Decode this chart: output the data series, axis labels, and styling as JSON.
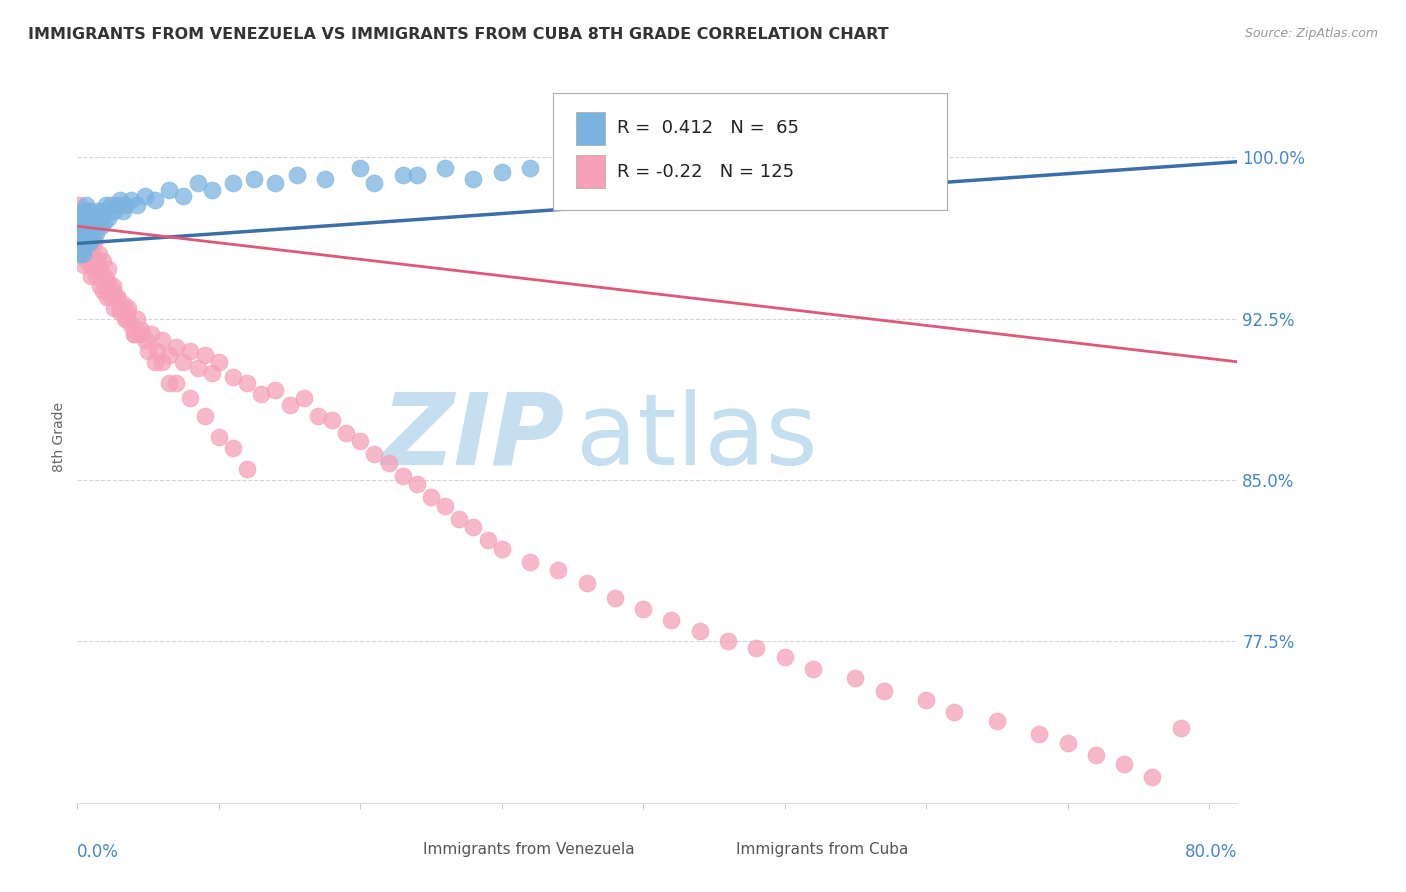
{
  "title": "IMMIGRANTS FROM VENEZUELA VS IMMIGRANTS FROM CUBA 8TH GRADE CORRELATION CHART",
  "source": "Source: ZipAtlas.com",
  "xlabel_bottom_left": "0.0%",
  "xlabel_bottom_right": "80.0%",
  "ylabel": "8th Grade",
  "xlim": [
    0.0,
    0.82
  ],
  "ylim": [
    0.7,
    1.04
  ],
  "y_tick_positions": [
    0.775,
    0.85,
    0.925,
    1.0
  ],
  "y_tick_labels": [
    "77.5%",
    "85.0%",
    "92.5%",
    "100.0%"
  ],
  "R_venezuela": 0.412,
  "N_venezuela": 65,
  "R_cuba": -0.22,
  "N_cuba": 125,
  "color_venezuela": "#7ab3e0",
  "color_cuba": "#f5a0b8",
  "trendline_venezuela": "#3a6faa",
  "trendline_cuba": "#e05878",
  "legend_label_venezuela": "Immigrants from Venezuela",
  "legend_label_cuba": "Immigrants from Cuba",
  "watermark_zip": "ZIP",
  "watermark_atlas": "atlas",
  "watermark_color_zip": "#c5dff0",
  "watermark_color_atlas": "#c5dff0",
  "title_color": "#333333",
  "axis_color": "#4488cc",
  "grid_color": "#cccccc",
  "background_color": "#ffffff",
  "venezuela_x": [
    0.001,
    0.001,
    0.002,
    0.002,
    0.002,
    0.003,
    0.003,
    0.003,
    0.004,
    0.004,
    0.004,
    0.005,
    0.005,
    0.005,
    0.006,
    0.006,
    0.006,
    0.007,
    0.007,
    0.008,
    0.008,
    0.009,
    0.009,
    0.01,
    0.01,
    0.011,
    0.012,
    0.013,
    0.014,
    0.015,
    0.016,
    0.017,
    0.018,
    0.019,
    0.02,
    0.022,
    0.024,
    0.026,
    0.028,
    0.03,
    0.032,
    0.034,
    0.038,
    0.042,
    0.048,
    0.055,
    0.065,
    0.075,
    0.085,
    0.095,
    0.11,
    0.125,
    0.14,
    0.155,
    0.175,
    0.2,
    0.23,
    0.26,
    0.3,
    0.35,
    0.21,
    0.24,
    0.28,
    0.32,
    0.38
  ],
  "venezuela_y": [
    0.958,
    0.963,
    0.955,
    0.965,
    0.97,
    0.96,
    0.968,
    0.972,
    0.955,
    0.963,
    0.97,
    0.958,
    0.965,
    0.975,
    0.96,
    0.97,
    0.978,
    0.965,
    0.975,
    0.96,
    0.972,
    0.965,
    0.975,
    0.962,
    0.97,
    0.968,
    0.972,
    0.965,
    0.975,
    0.97,
    0.972,
    0.968,
    0.975,
    0.97,
    0.978,
    0.972,
    0.978,
    0.975,
    0.978,
    0.98,
    0.975,
    0.978,
    0.98,
    0.978,
    0.982,
    0.98,
    0.985,
    0.982,
    0.988,
    0.985,
    0.988,
    0.99,
    0.988,
    0.992,
    0.99,
    0.995,
    0.992,
    0.995,
    0.993,
    0.998,
    0.988,
    0.992,
    0.99,
    0.995,
    0.988
  ],
  "cuba_x": [
    0.001,
    0.001,
    0.002,
    0.002,
    0.003,
    0.003,
    0.004,
    0.004,
    0.005,
    0.005,
    0.005,
    0.006,
    0.006,
    0.007,
    0.007,
    0.008,
    0.008,
    0.009,
    0.009,
    0.01,
    0.01,
    0.011,
    0.012,
    0.012,
    0.013,
    0.014,
    0.015,
    0.016,
    0.017,
    0.018,
    0.019,
    0.02,
    0.021,
    0.022,
    0.024,
    0.025,
    0.026,
    0.028,
    0.03,
    0.032,
    0.034,
    0.036,
    0.038,
    0.04,
    0.042,
    0.045,
    0.048,
    0.052,
    0.056,
    0.06,
    0.065,
    0.07,
    0.075,
    0.08,
    0.085,
    0.09,
    0.095,
    0.1,
    0.11,
    0.12,
    0.13,
    0.14,
    0.15,
    0.16,
    0.17,
    0.18,
    0.19,
    0.2,
    0.21,
    0.22,
    0.23,
    0.24,
    0.25,
    0.26,
    0.27,
    0.28,
    0.29,
    0.3,
    0.32,
    0.34,
    0.36,
    0.38,
    0.4,
    0.42,
    0.44,
    0.46,
    0.48,
    0.5,
    0.52,
    0.55,
    0.57,
    0.6,
    0.62,
    0.65,
    0.68,
    0.7,
    0.72,
    0.74,
    0.76,
    0.78,
    0.01,
    0.015,
    0.02,
    0.025,
    0.03,
    0.035,
    0.04,
    0.05,
    0.06,
    0.07,
    0.08,
    0.09,
    0.1,
    0.11,
    0.12,
    0.005,
    0.008,
    0.012,
    0.018,
    0.022,
    0.028,
    0.035,
    0.045,
    0.055,
    0.065
  ],
  "cuba_y": [
    0.97,
    0.978,
    0.965,
    0.975,
    0.96,
    0.972,
    0.955,
    0.968,
    0.95,
    0.962,
    0.972,
    0.958,
    0.965,
    0.952,
    0.96,
    0.955,
    0.968,
    0.95,
    0.958,
    0.962,
    0.945,
    0.955,
    0.95,
    0.96,
    0.945,
    0.952,
    0.948,
    0.94,
    0.945,
    0.938,
    0.945,
    0.94,
    0.935,
    0.942,
    0.935,
    0.94,
    0.93,
    0.935,
    0.928,
    0.932,
    0.925,
    0.93,
    0.922,
    0.918,
    0.925,
    0.92,
    0.915,
    0.918,
    0.91,
    0.915,
    0.908,
    0.912,
    0.905,
    0.91,
    0.902,
    0.908,
    0.9,
    0.905,
    0.898,
    0.895,
    0.89,
    0.892,
    0.885,
    0.888,
    0.88,
    0.878,
    0.872,
    0.868,
    0.862,
    0.858,
    0.852,
    0.848,
    0.842,
    0.838,
    0.832,
    0.828,
    0.822,
    0.818,
    0.812,
    0.808,
    0.802,
    0.795,
    0.79,
    0.785,
    0.78,
    0.775,
    0.772,
    0.768,
    0.762,
    0.758,
    0.752,
    0.748,
    0.742,
    0.738,
    0.732,
    0.728,
    0.722,
    0.718,
    0.712,
    0.735,
    0.96,
    0.955,
    0.942,
    0.938,
    0.93,
    0.925,
    0.918,
    0.91,
    0.905,
    0.895,
    0.888,
    0.88,
    0.87,
    0.865,
    0.855,
    0.975,
    0.968,
    0.962,
    0.952,
    0.948,
    0.935,
    0.928,
    0.918,
    0.905,
    0.895
  ]
}
